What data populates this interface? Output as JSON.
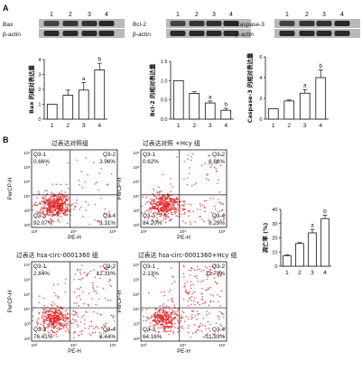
{
  "panel_a": {
    "label": "A",
    "blots": [
      {
        "lanes": [
          "1",
          "2",
          "3",
          "4"
        ],
        "rows": [
          "Bax",
          "β-actin"
        ]
      },
      {
        "lanes": [
          "1",
          "2",
          "3",
          "4"
        ],
        "rows": [
          "Bcl-2",
          "β-actin"
        ]
      },
      {
        "lanes": [
          "1",
          "2",
          "3",
          "4"
        ],
        "rows": [
          "Caspase-3",
          "β-actin"
        ]
      }
    ]
  },
  "panel_b": {
    "label": "B",
    "flow_plots": [
      {
        "title": "过表达对照组",
        "ylabel": "PerCP-H",
        "xlabel": "PE-H",
        "q1": "Q3-1",
        "q1v": "0.66%",
        "q2": "Q3-2",
        "q2v": "3.96%",
        "q3": "Q3-3",
        "q3v": "92.07%",
        "q4": "Q3-4",
        "q4v": "3.31%"
      },
      {
        "title": "过表达对照 +Hcy 组",
        "ylabel": "PerCP-H",
        "xlabel": "PE-H",
        "q1": "Q3-1",
        "q1v": "0.62%",
        "q2": "Q3-2",
        "q2v": "6.88%",
        "q3": "Q3-3",
        "q3v": "84.20%",
        "q4": "Q3-4",
        "q4v": "8.29%"
      },
      {
        "title": "过表达 hsa-circ-0001360 组",
        "ylabel": "PerCP-H",
        "xlabel": "PE-H",
        "q1": "Q3-1",
        "q1v": "2.84%",
        "q2": "Q3-2",
        "q2v": "12.31%",
        "q3": "Q3-3",
        "q3v": "76.41%",
        "q4": "Q3-4",
        "q4v": "8.44%"
      },
      {
        "title": "过表达 hsa-circ-0001360+Hcy 组",
        "ylabel": "PerCP-H",
        "xlabel": "PE-H",
        "q1": "Q3-1",
        "q1v": "2.13%",
        "q2": "Q3-2",
        "q2v": "21.78%",
        "q3": "Q3-3",
        "q3v": "64.16%",
        "q4": "Q3-4",
        "q4v": "11.93%"
      }
    ],
    "y_ticks": [
      "10⁷",
      "10⁶",
      "10⁵",
      "10⁴",
      "10³",
      "10²"
    ],
    "x_ticks": [
      "10²",
      "10⁴",
      "10⁶"
    ]
  },
  "chart_data": [
    {
      "type": "bar",
      "ylabel": "Bax 的相对表达量",
      "categories": [
        "1",
        "2",
        "3",
        "4"
      ],
      "values": [
        1.0,
        1.6,
        1.95,
        3.3
      ],
      "errors": [
        0.0,
        0.35,
        0.5,
        0.45
      ],
      "ylim": [
        0,
        4
      ],
      "yticks": [
        0,
        1,
        2,
        3,
        4
      ],
      "annotations": [
        "",
        "",
        "a",
        "b"
      ]
    },
    {
      "type": "bar",
      "ylabel": "Bcl-2 的相对表达量",
      "categories": [
        "1",
        "2",
        "3",
        "4"
      ],
      "values": [
        1.0,
        0.67,
        0.42,
        0.23
      ],
      "errors": [
        0.0,
        0.04,
        0.05,
        0.05
      ],
      "ylim": [
        0,
        1.5
      ],
      "yticks": [
        0.0,
        0.5,
        1.0,
        1.5
      ],
      "annotations": [
        "",
        "",
        "a",
        "b"
      ]
    },
    {
      "type": "bar",
      "ylabel": "Caspase-3 的相对表达量",
      "categories": [
        "1",
        "2",
        "3",
        "4"
      ],
      "values": [
        1.0,
        1.75,
        2.5,
        4.0
      ],
      "errors": [
        0.0,
        0.1,
        0.35,
        0.75
      ],
      "ylim": [
        0,
        6
      ],
      "yticks": [
        0,
        2,
        4,
        6
      ],
      "annotations": [
        "",
        "",
        "a",
        "b"
      ]
    },
    {
      "type": "bar",
      "ylabel": "凋亡率 (%)",
      "categories": [
        "1",
        "2",
        "3",
        "4"
      ],
      "values": [
        7.5,
        16.0,
        23.5,
        33.5
      ],
      "errors": [
        0.5,
        0.6,
        2.5,
        2.5
      ],
      "ylim": [
        0,
        40
      ],
      "yticks": [
        0,
        10,
        20,
        30,
        40
      ],
      "annotations": [
        "",
        "",
        "a",
        "b"
      ]
    }
  ]
}
